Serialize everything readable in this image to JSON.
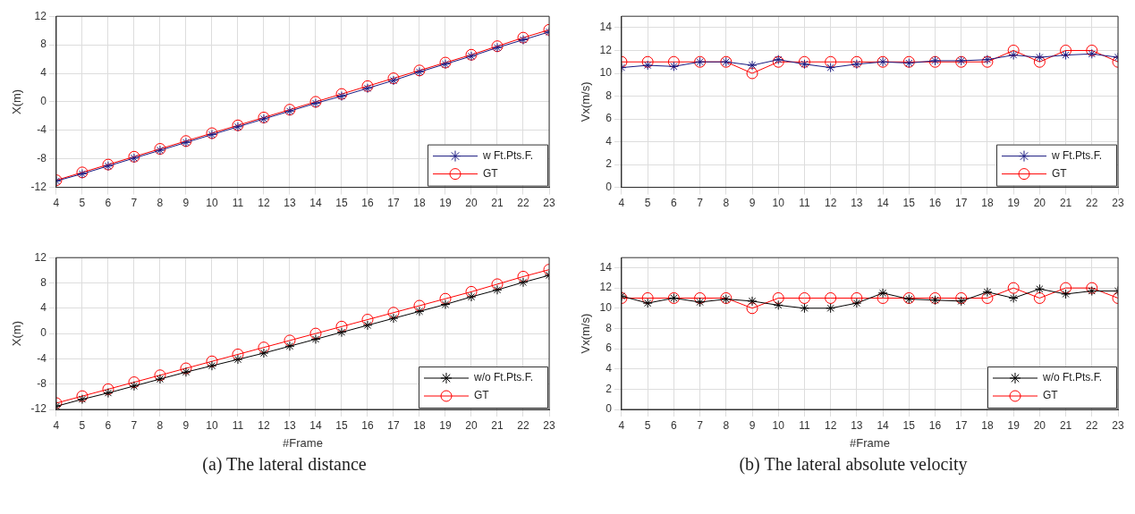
{
  "chart_data": [
    {
      "type": "line",
      "ylabel": "X(m)",
      "x": [
        4,
        5,
        6,
        7,
        8,
        9,
        10,
        11,
        12,
        13,
        14,
        15,
        16,
        17,
        18,
        19,
        20,
        21,
        22,
        23
      ],
      "xlim": [
        4,
        23
      ],
      "xticks": [
        4,
        5,
        6,
        7,
        8,
        9,
        10,
        11,
        12,
        13,
        14,
        15,
        16,
        17,
        18,
        19,
        20,
        21,
        22,
        23
      ],
      "ylim": [
        -12,
        12
      ],
      "yticks": [
        -12,
        -8,
        -4,
        0,
        4,
        8,
        12
      ],
      "grid": true,
      "legend": "bottom right",
      "line_style": "solid",
      "series": [
        {
          "name": "w Ft.Pts.F.",
          "color": "#1a1a80",
          "marker": "cross",
          "values": [
            -11.1,
            -10.1,
            -9.0,
            -7.9,
            -6.8,
            -5.7,
            -4.6,
            -3.5,
            -2.4,
            -1.3,
            -0.2,
            0.8,
            1.9,
            3.0,
            4.2,
            5.3,
            6.4,
            7.6,
            8.7,
            9.8
          ]
        },
        {
          "name": "GT",
          "color": "#ff0000",
          "marker": "circle",
          "values": [
            -11.0,
            -9.9,
            -8.8,
            -7.7,
            -6.6,
            -5.5,
            -4.4,
            -3.3,
            -2.2,
            -1.1,
            0.0,
            1.1,
            2.2,
            3.3,
            4.4,
            5.5,
            6.6,
            7.8,
            9.0,
            10.1
          ]
        }
      ]
    },
    {
      "type": "line",
      "ylabel": "Vx(m/s)",
      "x": [
        4,
        5,
        6,
        7,
        8,
        9,
        10,
        11,
        12,
        13,
        14,
        15,
        16,
        17,
        18,
        19,
        20,
        21,
        22,
        23
      ],
      "xlim": [
        4,
        23
      ],
      "xticks": [
        4,
        5,
        6,
        7,
        8,
        9,
        10,
        11,
        12,
        13,
        14,
        15,
        16,
        17,
        18,
        19,
        20,
        21,
        22,
        23
      ],
      "ylim": [
        0,
        15
      ],
      "yticks": [
        0,
        2,
        4,
        6,
        8,
        10,
        12,
        14
      ],
      "grid": true,
      "legend": "bottom right",
      "line_style": "solid",
      "series": [
        {
          "name": "w Ft.Pts.F.",
          "color": "#1a1a80",
          "marker": "cross",
          "values": [
            10.5,
            10.7,
            10.6,
            11.0,
            11.0,
            10.7,
            11.2,
            10.8,
            10.5,
            10.8,
            11.0,
            10.9,
            11.1,
            11.1,
            11.2,
            11.6,
            11.4,
            11.6,
            11.7,
            11.4
          ]
        },
        {
          "name": "GT",
          "color": "#ff0000",
          "marker": "circle",
          "values": [
            11,
            11,
            11,
            11,
            11,
            10,
            11,
            11,
            11,
            11,
            11,
            11,
            11,
            11,
            11,
            12,
            11,
            12,
            12,
            11
          ]
        }
      ]
    },
    {
      "type": "line",
      "ylabel": "X(m)",
      "xlabel": "#Frame",
      "annotations": [
        "(a) The lateral distance"
      ],
      "x": [
        4,
        5,
        6,
        7,
        8,
        9,
        10,
        11,
        12,
        13,
        14,
        15,
        16,
        17,
        18,
        19,
        20,
        21,
        22,
        23
      ],
      "xlim": [
        4,
        23
      ],
      "xticks": [
        4,
        5,
        6,
        7,
        8,
        9,
        10,
        11,
        12,
        13,
        14,
        15,
        16,
        17,
        18,
        19,
        20,
        21,
        22,
        23
      ],
      "ylim": [
        -12,
        12
      ],
      "yticks": [
        -12,
        -8,
        -4,
        0,
        4,
        8,
        12
      ],
      "grid": true,
      "legend": "bottom right",
      "line_style": "solid",
      "series": [
        {
          "name": "w/o Ft.Pts.F.",
          "color": "#000000",
          "marker": "cross",
          "values": [
            -11.5,
            -10.4,
            -9.4,
            -8.3,
            -7.2,
            -6.1,
            -5.1,
            -4.1,
            -3.1,
            -2.0,
            -0.9,
            0.2,
            1.3,
            2.4,
            3.5,
            4.6,
            5.8,
            6.9,
            8.1,
            9.2
          ]
        },
        {
          "name": "GT",
          "color": "#ff0000",
          "marker": "circle",
          "values": [
            -11.0,
            -9.9,
            -8.8,
            -7.7,
            -6.6,
            -5.5,
            -4.4,
            -3.3,
            -2.2,
            -1.1,
            0.0,
            1.1,
            2.2,
            3.3,
            4.4,
            5.5,
            6.6,
            7.8,
            9.0,
            10.1
          ]
        }
      ]
    },
    {
      "type": "line",
      "ylabel": "Vx(m/s)",
      "xlabel": "#Frame",
      "annotations": [
        "(b) The lateral absolute velocity"
      ],
      "x": [
        4,
        5,
        6,
        7,
        8,
        9,
        10,
        11,
        12,
        13,
        14,
        15,
        16,
        17,
        18,
        19,
        20,
        21,
        22,
        23
      ],
      "xlim": [
        4,
        23
      ],
      "xticks": [
        4,
        5,
        6,
        7,
        8,
        9,
        10,
        11,
        12,
        13,
        14,
        15,
        16,
        17,
        18,
        19,
        20,
        21,
        22,
        23
      ],
      "ylim": [
        0,
        15
      ],
      "yticks": [
        0,
        2,
        4,
        6,
        8,
        10,
        12,
        14
      ],
      "grid": true,
      "legend": "bottom right",
      "line_style": "solid",
      "series": [
        {
          "name": "w/o Ft.Pts.F.",
          "color": "#000000",
          "marker": "cross",
          "values": [
            11.2,
            10.5,
            11.0,
            10.6,
            10.9,
            10.7,
            10.3,
            10.0,
            10.0,
            10.5,
            11.5,
            10.9,
            10.8,
            10.7,
            11.6,
            11.0,
            11.9,
            11.4,
            11.7,
            11.7
          ]
        },
        {
          "name": "GT",
          "color": "#ff0000",
          "marker": "circle",
          "values": [
            11,
            11,
            11,
            11,
            11,
            10,
            11,
            11,
            11,
            11,
            11,
            11,
            11,
            11,
            11,
            12,
            11,
            12,
            12,
            11
          ]
        }
      ]
    }
  ]
}
